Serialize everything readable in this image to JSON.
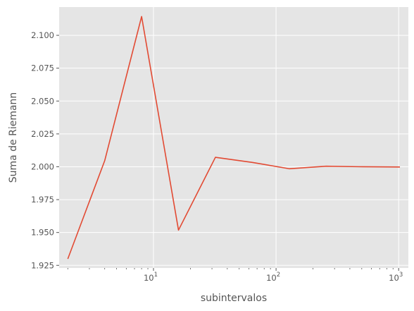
{
  "chart_data": {
    "type": "line",
    "title": "",
    "xlabel": "subintervalos",
    "ylabel": "Suma de Riemann",
    "xscale": "log",
    "xlim": [
      1.7,
      1200
    ],
    "ylim": [
      1.923,
      2.1215
    ],
    "grid": true,
    "colors": {
      "background": "#e5e5e5",
      "grid": "#ffffff",
      "line": "#e24a33"
    },
    "x_ticks": [
      {
        "value": 10,
        "base": "10",
        "exp": "1"
      },
      {
        "value": 100,
        "base": "10",
        "exp": "2"
      },
      {
        "value": 1000,
        "base": "10",
        "exp": "3"
      }
    ],
    "y_ticks": [
      1.925,
      1.95,
      1.975,
      2.0,
      2.025,
      2.05,
      2.075,
      2.1
    ],
    "y_tick_labels": [
      "1.925",
      "1.950",
      "1.975",
      "2.000",
      "2.025",
      "2.050",
      "2.075",
      "2.100"
    ],
    "series": [
      {
        "x": [
          2,
          4,
          8,
          16,
          32,
          64,
          128,
          256,
          512,
          1024
        ],
        "y": [
          1.9299,
          2.0046,
          2.1143,
          1.9518,
          2.0072,
          2.0033,
          1.9985,
          2.0004,
          2.0,
          1.9998
        ]
      }
    ]
  }
}
